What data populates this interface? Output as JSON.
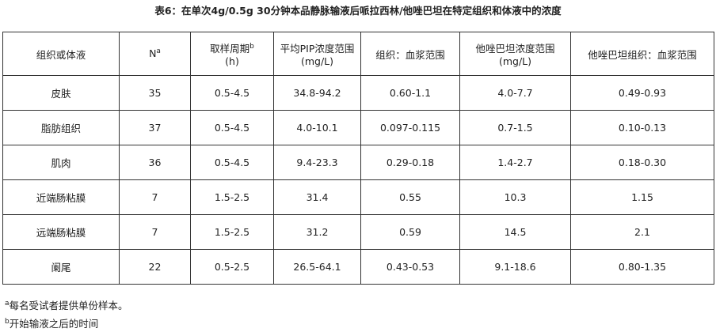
{
  "title": "表6：在单次4g/0.5g 30分钟本品静脉输液后哌拉西林/他唑巴坦在特定组织和体液中的浓度",
  "table": {
    "headers": [
      {
        "text": "组织或体液"
      },
      {
        "text": "N",
        "sup": "a"
      },
      {
        "text": "取样周期",
        "sup": "b",
        "unit": "(h)"
      },
      {
        "text": "平均PIP浓度范围",
        "unit": "(mg/L)"
      },
      {
        "text": "组织：血浆范围"
      },
      {
        "text": "他唑巴坦浓度范围",
        "unit": "(mg/L)"
      },
      {
        "text": "他唑巴坦组织：血浆范围"
      }
    ],
    "rows": [
      [
        "皮肤",
        "35",
        "0.5-4.5",
        "34.8-94.2",
        "0.60-1.1",
        "4.0-7.7",
        "0.49-0.93"
      ],
      [
        "脂肪组织",
        "37",
        "0.5-4.5",
        "4.0-10.1",
        "0.097-0.115",
        "0.7-1.5",
        "0.10-0.13"
      ],
      [
        "肌肉",
        "36",
        "0.5-4.5",
        "9.4-23.3",
        "0.29-0.18",
        "1.4-2.7",
        "0.18-0.30"
      ],
      [
        "近端肠粘膜",
        "7",
        "1.5-2.5",
        "31.4",
        "0.55",
        "10.3",
        "1.15"
      ],
      [
        "远端肠粘膜",
        "7",
        "1.5-2.5",
        "31.2",
        "0.59",
        "14.5",
        "2.1"
      ],
      [
        "阑尾",
        "22",
        "0.5-2.5",
        "26.5-64.1",
        "0.43-0.53",
        "9.1-18.6",
        "0.80-1.35"
      ]
    ]
  },
  "footnotes": [
    {
      "mark": "a",
      "text": "每名受试者提供单份样本。"
    },
    {
      "mark": "b",
      "text": "开始输液之后的时间"
    }
  ]
}
